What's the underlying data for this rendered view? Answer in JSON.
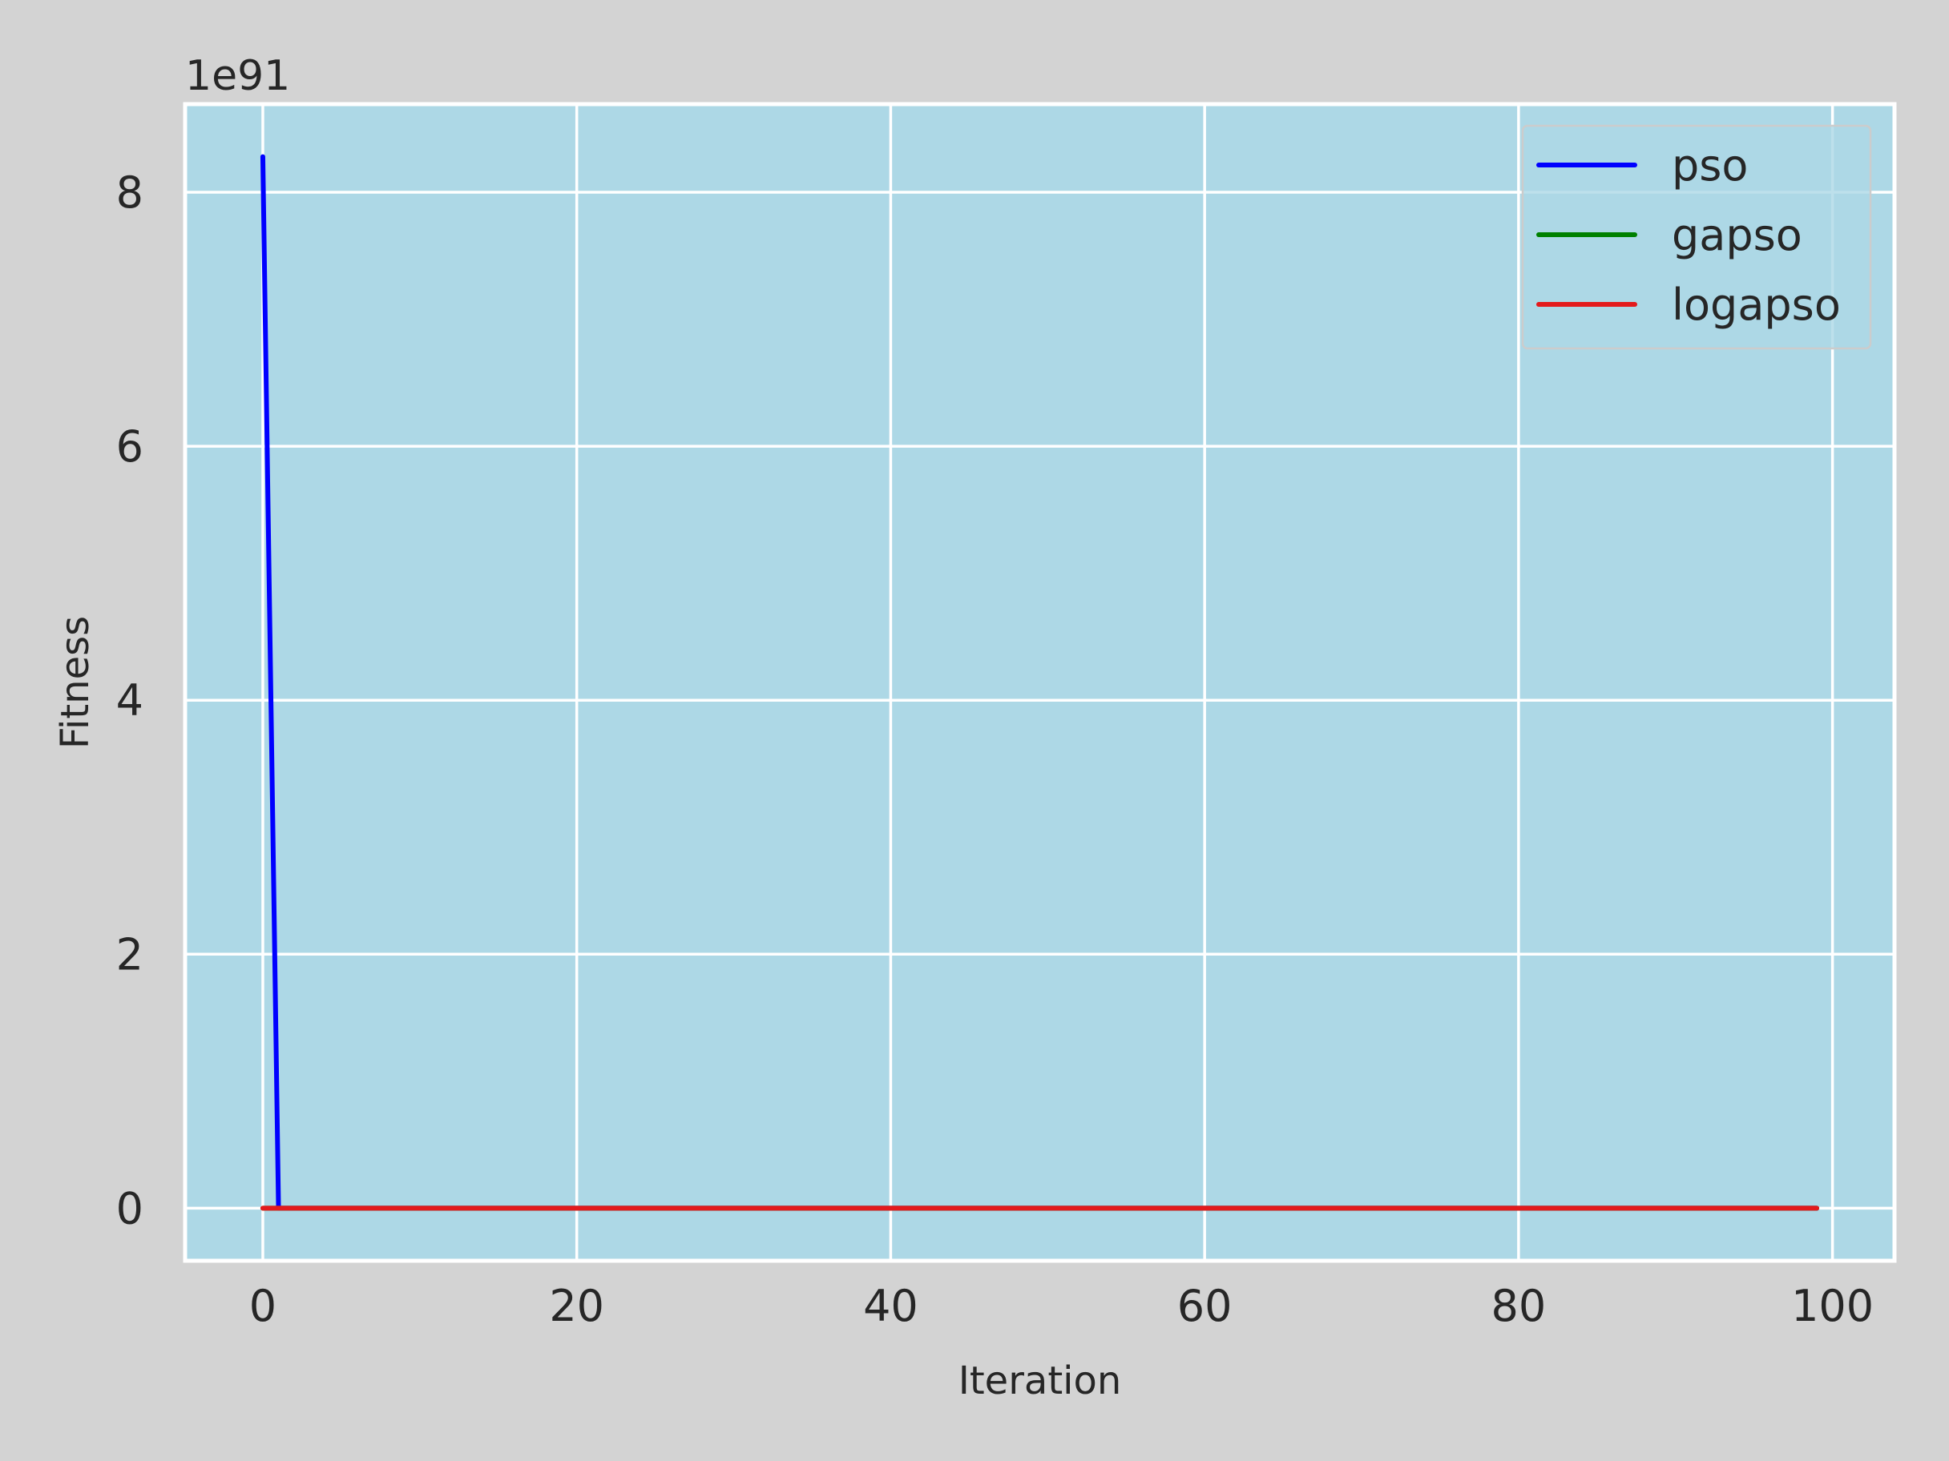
{
  "chart_data": {
    "type": "line",
    "title": "",
    "xlabel": "Iteration",
    "ylabel": "Fitness",
    "y_offset_label": "1e91",
    "y_scale": 1e+91,
    "xlim": [
      -4.95,
      103.95
    ],
    "ylim": [
      -0.414,
      8.694
    ],
    "x_ticks": [
      0,
      20,
      40,
      60,
      80,
      100
    ],
    "x_tick_labels": [
      "0",
      "20",
      "40",
      "60",
      "80",
      "100"
    ],
    "y_ticks": [
      0,
      2,
      4,
      6,
      8
    ],
    "y_tick_labels": [
      "0",
      "2",
      "4",
      "6",
      "8"
    ],
    "grid": true,
    "legend_position": "upper right",
    "colors": {
      "figure_background": "#d3d3d3",
      "axes_background": "#add8e6",
      "grid": "#ffffff",
      "text": "#262626"
    },
    "series": [
      {
        "name": "pso",
        "color": "#0000ff",
        "points": [
          [
            0,
            8.28
          ],
          [
            1,
            0.0
          ],
          [
            99,
            0.0
          ]
        ]
      },
      {
        "name": "gapso",
        "color": "#008000",
        "points": [
          [
            0,
            0.0
          ],
          [
            99,
            0.0
          ]
        ]
      },
      {
        "name": "logapso",
        "color": "#e31a1c",
        "points": [
          [
            0,
            0.0
          ],
          [
            99,
            0.0
          ]
        ]
      }
    ]
  }
}
